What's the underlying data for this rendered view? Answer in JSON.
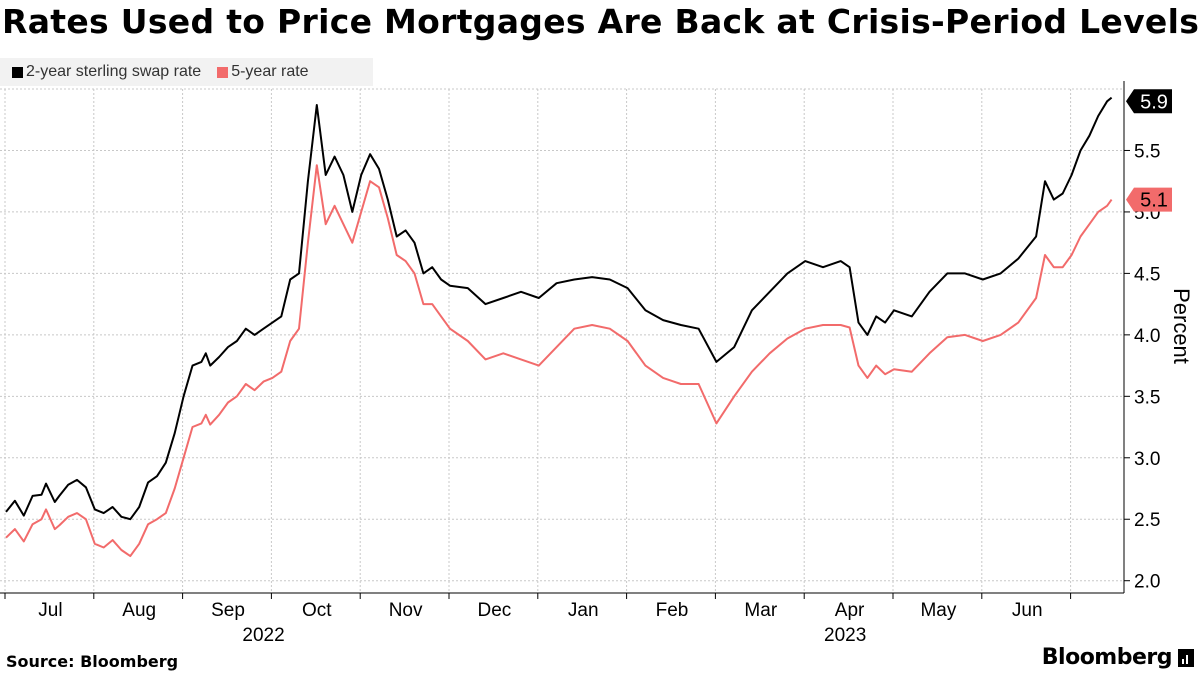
{
  "title": "Rates Used to Price Mortgages Are Back at Crisis-Period Levels",
  "source": "Source: Bloomberg",
  "brand": "Bloomberg",
  "colors": {
    "series1": "#000000",
    "series2": "#f26b6b",
    "grid": "#c8c8c8"
  },
  "chart_data": {
    "type": "line",
    "title": "Rates Used to Price Mortgages Are Back at Crisis-Period Levels",
    "ylabel": "Percent",
    "ylim": [
      1.9,
      6.0
    ],
    "yticks": [
      2.0,
      2.5,
      3.0,
      3.5,
      4.0,
      4.5,
      5.0,
      5.5
    ],
    "xlim": [
      0,
      12.45
    ],
    "month_labels": [
      "Jul",
      "Aug",
      "Sep",
      "Oct",
      "Nov",
      "Dec",
      "Jan",
      "Feb",
      "Mar",
      "Apr",
      "May",
      "Jun"
    ],
    "year_labels": [
      {
        "label": "2022",
        "month_index": 2.9
      },
      {
        "label": "2023",
        "month_index": 9.45
      }
    ],
    "legend_position": "top-left",
    "series": [
      {
        "name": "2-year sterling swap rate",
        "end_label": "5.9",
        "points": [
          [
            0.0,
            2.56
          ],
          [
            0.1,
            2.65
          ],
          [
            0.2,
            2.53
          ],
          [
            0.3,
            2.69
          ],
          [
            0.4,
            2.7
          ],
          [
            0.45,
            2.79
          ],
          [
            0.55,
            2.64
          ],
          [
            0.6,
            2.69
          ],
          [
            0.7,
            2.78
          ],
          [
            0.8,
            2.82
          ],
          [
            0.9,
            2.76
          ],
          [
            1.0,
            2.58
          ],
          [
            1.1,
            2.55
          ],
          [
            1.2,
            2.6
          ],
          [
            1.3,
            2.52
          ],
          [
            1.4,
            2.5
          ],
          [
            1.5,
            2.6
          ],
          [
            1.6,
            2.8
          ],
          [
            1.7,
            2.85
          ],
          [
            1.8,
            2.96
          ],
          [
            1.9,
            3.2
          ],
          [
            2.0,
            3.5
          ],
          [
            2.1,
            3.75
          ],
          [
            2.2,
            3.78
          ],
          [
            2.25,
            3.85
          ],
          [
            2.3,
            3.75
          ],
          [
            2.4,
            3.82
          ],
          [
            2.5,
            3.9
          ],
          [
            2.6,
            3.95
          ],
          [
            2.7,
            4.05
          ],
          [
            2.8,
            4.0
          ],
          [
            2.9,
            4.05
          ],
          [
            3.0,
            4.1
          ],
          [
            3.1,
            4.15
          ],
          [
            3.2,
            4.45
          ],
          [
            3.3,
            4.5
          ],
          [
            3.4,
            5.25
          ],
          [
            3.5,
            5.87
          ],
          [
            3.6,
            5.3
          ],
          [
            3.7,
            5.45
          ],
          [
            3.8,
            5.3
          ],
          [
            3.9,
            5.0
          ],
          [
            4.0,
            5.3
          ],
          [
            4.1,
            5.47
          ],
          [
            4.2,
            5.35
          ],
          [
            4.3,
            5.1
          ],
          [
            4.4,
            4.8
          ],
          [
            4.5,
            4.85
          ],
          [
            4.6,
            4.75
          ],
          [
            4.7,
            4.5
          ],
          [
            4.8,
            4.55
          ],
          [
            4.9,
            4.45
          ],
          [
            5.0,
            4.4
          ],
          [
            5.2,
            4.38
          ],
          [
            5.4,
            4.25
          ],
          [
            5.6,
            4.3
          ],
          [
            5.8,
            4.35
          ],
          [
            6.0,
            4.3
          ],
          [
            6.2,
            4.42
          ],
          [
            6.4,
            4.45
          ],
          [
            6.6,
            4.47
          ],
          [
            6.8,
            4.45
          ],
          [
            7.0,
            4.38
          ],
          [
            7.2,
            4.2
          ],
          [
            7.4,
            4.12
          ],
          [
            7.6,
            4.08
          ],
          [
            7.8,
            4.05
          ],
          [
            8.0,
            3.78
          ],
          [
            8.2,
            3.9
          ],
          [
            8.4,
            4.2
          ],
          [
            8.6,
            4.35
          ],
          [
            8.8,
            4.5
          ],
          [
            9.0,
            4.6
          ],
          [
            9.2,
            4.55
          ],
          [
            9.4,
            4.6
          ],
          [
            9.5,
            4.55
          ],
          [
            9.6,
            4.1
          ],
          [
            9.7,
            4.0
          ],
          [
            9.8,
            4.15
          ],
          [
            9.9,
            4.1
          ],
          [
            10.0,
            4.2
          ],
          [
            10.2,
            4.15
          ],
          [
            10.4,
            4.35
          ],
          [
            10.6,
            4.5
          ],
          [
            10.8,
            4.5
          ],
          [
            11.0,
            4.45
          ],
          [
            11.2,
            4.5
          ],
          [
            11.4,
            4.62
          ],
          [
            11.6,
            4.8
          ],
          [
            11.7,
            5.25
          ],
          [
            11.8,
            5.1
          ],
          [
            11.9,
            5.15
          ],
          [
            12.0,
            5.3
          ],
          [
            12.1,
            5.5
          ],
          [
            12.2,
            5.62
          ],
          [
            12.3,
            5.78
          ],
          [
            12.4,
            5.9
          ],
          [
            12.45,
            5.93
          ]
        ]
      },
      {
        "name": "5-year rate",
        "end_label": "5.1",
        "points": [
          [
            0.0,
            2.35
          ],
          [
            0.1,
            2.42
          ],
          [
            0.2,
            2.32
          ],
          [
            0.3,
            2.46
          ],
          [
            0.4,
            2.5
          ],
          [
            0.45,
            2.58
          ],
          [
            0.55,
            2.42
          ],
          [
            0.6,
            2.45
          ],
          [
            0.7,
            2.52
          ],
          [
            0.8,
            2.55
          ],
          [
            0.9,
            2.5
          ],
          [
            1.0,
            2.3
          ],
          [
            1.1,
            2.27
          ],
          [
            1.2,
            2.33
          ],
          [
            1.3,
            2.25
          ],
          [
            1.4,
            2.2
          ],
          [
            1.5,
            2.3
          ],
          [
            1.6,
            2.46
          ],
          [
            1.7,
            2.5
          ],
          [
            1.8,
            2.55
          ],
          [
            1.9,
            2.75
          ],
          [
            2.0,
            3.0
          ],
          [
            2.1,
            3.25
          ],
          [
            2.2,
            3.28
          ],
          [
            2.25,
            3.35
          ],
          [
            2.3,
            3.27
          ],
          [
            2.4,
            3.35
          ],
          [
            2.5,
            3.45
          ],
          [
            2.6,
            3.5
          ],
          [
            2.7,
            3.6
          ],
          [
            2.8,
            3.55
          ],
          [
            2.9,
            3.62
          ],
          [
            3.0,
            3.65
          ],
          [
            3.1,
            3.7
          ],
          [
            3.2,
            3.95
          ],
          [
            3.3,
            4.05
          ],
          [
            3.4,
            4.75
          ],
          [
            3.5,
            5.38
          ],
          [
            3.6,
            4.9
          ],
          [
            3.7,
            5.05
          ],
          [
            3.8,
            4.9
          ],
          [
            3.9,
            4.75
          ],
          [
            4.0,
            5.0
          ],
          [
            4.1,
            5.25
          ],
          [
            4.2,
            5.2
          ],
          [
            4.3,
            4.95
          ],
          [
            4.4,
            4.65
          ],
          [
            4.5,
            4.6
          ],
          [
            4.6,
            4.5
          ],
          [
            4.7,
            4.25
          ],
          [
            4.8,
            4.25
          ],
          [
            4.9,
            4.15
          ],
          [
            5.0,
            4.05
          ],
          [
            5.2,
            3.95
          ],
          [
            5.4,
            3.8
          ],
          [
            5.6,
            3.85
          ],
          [
            5.8,
            3.8
          ],
          [
            6.0,
            3.75
          ],
          [
            6.2,
            3.9
          ],
          [
            6.4,
            4.05
          ],
          [
            6.6,
            4.08
          ],
          [
            6.8,
            4.05
          ],
          [
            7.0,
            3.95
          ],
          [
            7.2,
            3.75
          ],
          [
            7.4,
            3.65
          ],
          [
            7.6,
            3.6
          ],
          [
            7.8,
            3.6
          ],
          [
            8.0,
            3.28
          ],
          [
            8.2,
            3.5
          ],
          [
            8.4,
            3.7
          ],
          [
            8.6,
            3.85
          ],
          [
            8.8,
            3.97
          ],
          [
            9.0,
            4.05
          ],
          [
            9.2,
            4.08
          ],
          [
            9.4,
            4.08
          ],
          [
            9.5,
            4.06
          ],
          [
            9.6,
            3.75
          ],
          [
            9.7,
            3.65
          ],
          [
            9.8,
            3.75
          ],
          [
            9.9,
            3.68
          ],
          [
            10.0,
            3.72
          ],
          [
            10.2,
            3.7
          ],
          [
            10.4,
            3.85
          ],
          [
            10.6,
            3.98
          ],
          [
            10.8,
            4.0
          ],
          [
            11.0,
            3.95
          ],
          [
            11.2,
            4.0
          ],
          [
            11.4,
            4.1
          ],
          [
            11.6,
            4.3
          ],
          [
            11.7,
            4.65
          ],
          [
            11.8,
            4.55
          ],
          [
            11.9,
            4.55
          ],
          [
            12.0,
            4.65
          ],
          [
            12.1,
            4.8
          ],
          [
            12.2,
            4.9
          ],
          [
            12.3,
            5.0
          ],
          [
            12.4,
            5.05
          ],
          [
            12.45,
            5.1
          ]
        ]
      }
    ]
  }
}
